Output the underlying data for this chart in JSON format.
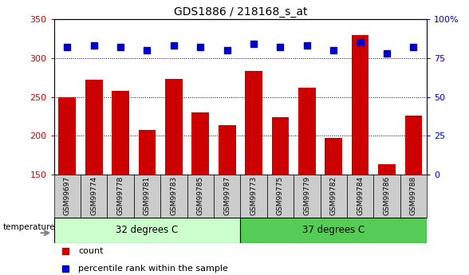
{
  "title": "GDS1886 / 218168_s_at",
  "samples": [
    "GSM99697",
    "GSM99774",
    "GSM99778",
    "GSM99781",
    "GSM99783",
    "GSM99785",
    "GSM99787",
    "GSM99773",
    "GSM99775",
    "GSM99779",
    "GSM99782",
    "GSM99784",
    "GSM99786",
    "GSM99788"
  ],
  "counts": [
    250,
    272,
    258,
    208,
    273,
    230,
    214,
    283,
    224,
    262,
    197,
    330,
    163,
    226
  ],
  "percentile_ranks": [
    82,
    83,
    82,
    80,
    83,
    82,
    80,
    84,
    82,
    83,
    80,
    85,
    78,
    82
  ],
  "group1_label": "32 degrees C",
  "group2_label": "37 degrees C",
  "group1_count": 7,
  "group2_count": 7,
  "temperature_label": "temperature",
  "ymin": 150,
  "ymax": 350,
  "yticks": [
    150,
    200,
    250,
    300,
    350
  ],
  "y2min": 0,
  "y2max": 100,
  "y2ticks": [
    0,
    25,
    50,
    75,
    100
  ],
  "bar_color": "#cc0000",
  "dot_color": "#0000cc",
  "group1_bg": "#ccffcc",
  "group2_bg": "#55cc55",
  "xlabel_bg": "#cccccc",
  "legend_count_color": "#cc0000",
  "legend_dot_color": "#0000cc",
  "fig_width": 5.88,
  "fig_height": 3.45,
  "dpi": 100
}
